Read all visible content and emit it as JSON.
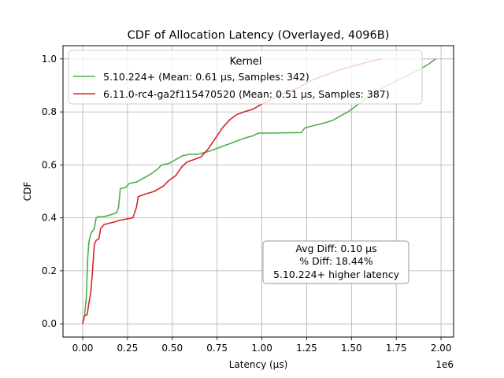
{
  "chart_data": {
    "type": "line",
    "title": "CDF of Allocation Latency (Overlayed, 4096B)",
    "xlabel": "Latency (µs)",
    "ylabel": "CDF",
    "x_offset_label": "1e6",
    "xlim": [
      -110000,
      2070000
    ],
    "ylim": [
      -0.05,
      1.05
    ],
    "x_ticks": [
      0,
      250000,
      500000,
      750000,
      1000000,
      1250000,
      1500000,
      1750000,
      2000000
    ],
    "x_tick_labels": [
      "0.00",
      "0.25",
      "0.50",
      "0.75",
      "1.00",
      "1.25",
      "1.50",
      "1.75",
      "2.00"
    ],
    "y_ticks": [
      0.0,
      0.2,
      0.4,
      0.6,
      0.8,
      1.0
    ],
    "y_tick_labels": [
      "0.0",
      "0.2",
      "0.4",
      "0.6",
      "0.8",
      "1.0"
    ],
    "grid": true,
    "legend": {
      "title": "Kernel",
      "position": "top-left"
    },
    "annotation": {
      "lines": [
        "Avg Diff: 0.10 µs",
        "% Diff: 18.44%",
        "5.10.224+ higher latency"
      ],
      "position": "lower-right"
    },
    "series": [
      {
        "name": "5.10.224+ (Mean: 0.61 µs, Samples: 342)",
        "color": "#4daf4a",
        "points": [
          [
            0,
            0.0
          ],
          [
            10000,
            0.03
          ],
          [
            20000,
            0.1
          ],
          [
            28000,
            0.25
          ],
          [
            35000,
            0.31
          ],
          [
            45000,
            0.34
          ],
          [
            55000,
            0.35
          ],
          [
            65000,
            0.36
          ],
          [
            75000,
            0.4
          ],
          [
            90000,
            0.405
          ],
          [
            120000,
            0.405
          ],
          [
            150000,
            0.41
          ],
          [
            190000,
            0.42
          ],
          [
            200000,
            0.44
          ],
          [
            210000,
            0.51
          ],
          [
            240000,
            0.515
          ],
          [
            260000,
            0.53
          ],
          [
            300000,
            0.535
          ],
          [
            340000,
            0.55
          ],
          [
            380000,
            0.565
          ],
          [
            420000,
            0.585
          ],
          [
            440000,
            0.6
          ],
          [
            480000,
            0.605
          ],
          [
            520000,
            0.62
          ],
          [
            560000,
            0.635
          ],
          [
            600000,
            0.64
          ],
          [
            640000,
            0.64
          ],
          [
            700000,
            0.65
          ],
          [
            740000,
            0.66
          ],
          [
            780000,
            0.67
          ],
          [
            820000,
            0.68
          ],
          [
            860000,
            0.69
          ],
          [
            900000,
            0.7
          ],
          [
            950000,
            0.71
          ],
          [
            980000,
            0.72
          ],
          [
            1050000,
            0.72
          ],
          [
            1220000,
            0.722
          ],
          [
            1240000,
            0.74
          ],
          [
            1300000,
            0.75
          ],
          [
            1360000,
            0.76
          ],
          [
            1400000,
            0.77
          ],
          [
            1440000,
            0.785
          ],
          [
            1480000,
            0.8
          ],
          [
            1520000,
            0.82
          ],
          [
            1560000,
            0.84
          ],
          [
            1600000,
            0.86
          ],
          [
            1650000,
            0.88
          ],
          [
            1700000,
            0.9
          ],
          [
            1760000,
            0.92
          ],
          [
            1820000,
            0.94
          ],
          [
            1880000,
            0.96
          ],
          [
            1930000,
            0.98
          ],
          [
            1970000,
            1.0
          ]
        ]
      },
      {
        "name": "6.11.0-rc4-ga2f115470520 (Mean: 0.51 µs, Samples: 387)",
        "color": "#d62728",
        "points": [
          [
            0,
            0.0
          ],
          [
            10000,
            0.03
          ],
          [
            25000,
            0.035
          ],
          [
            35000,
            0.08
          ],
          [
            45000,
            0.12
          ],
          [
            55000,
            0.2
          ],
          [
            65000,
            0.3
          ],
          [
            75000,
            0.315
          ],
          [
            90000,
            0.32
          ],
          [
            100000,
            0.36
          ],
          [
            120000,
            0.375
          ],
          [
            150000,
            0.38
          ],
          [
            180000,
            0.385
          ],
          [
            200000,
            0.39
          ],
          [
            240000,
            0.395
          ],
          [
            280000,
            0.4
          ],
          [
            300000,
            0.44
          ],
          [
            310000,
            0.48
          ],
          [
            350000,
            0.49
          ],
          [
            400000,
            0.5
          ],
          [
            450000,
            0.52
          ],
          [
            480000,
            0.54
          ],
          [
            520000,
            0.56
          ],
          [
            550000,
            0.59
          ],
          [
            580000,
            0.61
          ],
          [
            620000,
            0.62
          ],
          [
            660000,
            0.63
          ],
          [
            700000,
            0.66
          ],
          [
            740000,
            0.7
          ],
          [
            780000,
            0.74
          ],
          [
            820000,
            0.77
          ],
          [
            860000,
            0.79
          ],
          [
            900000,
            0.8
          ],
          [
            950000,
            0.81
          ],
          [
            1000000,
            0.83
          ],
          [
            1060000,
            0.85
          ],
          [
            1120000,
            0.87
          ],
          [
            1200000,
            0.89
          ],
          [
            1280000,
            0.92
          ],
          [
            1360000,
            0.94
          ],
          [
            1440000,
            0.96
          ],
          [
            1520000,
            0.975
          ],
          [
            1600000,
            0.99
          ],
          [
            1670000,
            1.0
          ]
        ]
      }
    ]
  }
}
